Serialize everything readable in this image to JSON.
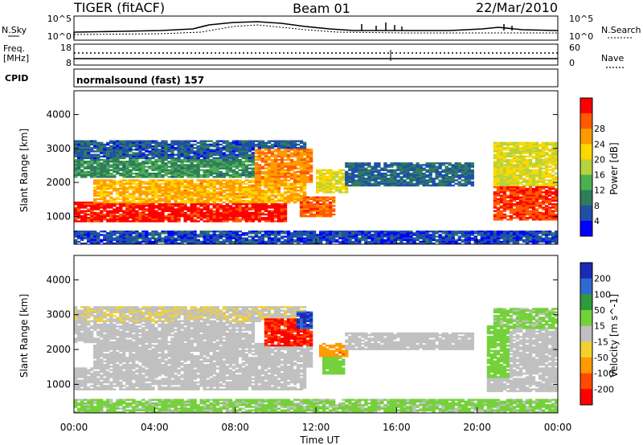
{
  "header": {
    "radar": "TIGER (fitACF)",
    "beam": "Beam 01",
    "date": "22/Mar/2010"
  },
  "top_panels": {
    "nsky_label": "N.Sky",
    "nsky_ticks": [
      "10^5",
      "10^0"
    ],
    "nsearch_label": "N.Search",
    "nsearch_ticks": [
      "10^5",
      "10^0"
    ],
    "freq_label": "Freq.",
    "freq_unit": "[MHz]",
    "freq_ticks": [
      "18",
      "8"
    ],
    "nave_label": "Nave",
    "nave_ticks": [
      "60",
      "0"
    ],
    "cpid_label": "CPID",
    "cpid_value": "normalsound (fast) 157"
  },
  "colors": {
    "power_scale": [
      "#0000ff",
      "#1f4fa8",
      "#2e7d5a",
      "#4caf50",
      "#b6d33a",
      "#ffd700",
      "#ff9a00",
      "#ff5a00",
      "#ff0000"
    ],
    "velocity_scale": [
      "#1a2ab5",
      "#2e6ad1",
      "#2e9a3c",
      "#74d13a",
      "#c0c0c0",
      "#f2d230",
      "#ff9a00",
      "#ff4a00",
      "#ff0000"
    ],
    "background": "#ffffff"
  },
  "chart_data": [
    {
      "type": "heatmap",
      "title": "",
      "ylabel": "Slant Range [km]",
      "xlabel": "Time UT",
      "x_ticks": [
        "00:00",
        "04:00",
        "08:00",
        "12:00",
        "16:00",
        "20:00",
        "00:00"
      ],
      "y_ticks": [
        "1000",
        "2000",
        "3000",
        "4000"
      ],
      "ylim": [
        180,
        4700
      ],
      "x_range_hours": [
        0,
        24
      ],
      "colorbar_label": "Power [dB]",
      "colorbar_ticks": [
        "4",
        "8",
        "12",
        "16",
        "20",
        "24",
        "28"
      ],
      "colorbar_range": [
        0,
        32
      ],
      "regions": [
        {
          "t0": 0.0,
          "t1": 10.5,
          "r0": 850,
          "r1": 1450,
          "level": 30
        },
        {
          "t0": 1.0,
          "t1": 11.5,
          "r0": 1400,
          "r1": 2100,
          "level": 22
        },
        {
          "t0": 0.0,
          "t1": 9.0,
          "r0": 2150,
          "r1": 2750,
          "level": 10
        },
        {
          "t0": 0.0,
          "t1": 11.5,
          "r0": 2700,
          "r1": 3250,
          "level": 6
        },
        {
          "t0": 9.0,
          "t1": 11.8,
          "r0": 2000,
          "r1": 3000,
          "level": 24
        },
        {
          "t0": 11.2,
          "t1": 13.0,
          "r0": 1000,
          "r1": 1600,
          "level": 26
        },
        {
          "t0": 12.0,
          "t1": 13.6,
          "r0": 1700,
          "r1": 2400,
          "level": 18
        },
        {
          "t0": 13.5,
          "t1": 19.8,
          "r0": 1900,
          "r1": 2600,
          "level": 7
        },
        {
          "t0": 20.8,
          "t1": 24.0,
          "r0": 900,
          "r1": 1900,
          "level": 28
        },
        {
          "t0": 20.8,
          "t1": 24.0,
          "r0": 1900,
          "r1": 3200,
          "level": 18
        },
        {
          "t0": 0.0,
          "t1": 24.0,
          "r0": 200,
          "r1": 600,
          "level": 5
        }
      ]
    },
    {
      "type": "heatmap",
      "title": "",
      "ylabel": "Slant Range [km]",
      "xlabel": "Time UT",
      "x_ticks": [
        "00:00",
        "04:00",
        "08:00",
        "12:00",
        "16:00",
        "20:00",
        "00:00"
      ],
      "y_ticks": [
        "1000",
        "2000",
        "3000",
        "4000"
      ],
      "ylim": [
        180,
        4700
      ],
      "x_range_hours": [
        0,
        24
      ],
      "colorbar_label": "Velocity [m s^-1]",
      "colorbar_ticks": [
        "200",
        "100",
        "50",
        "15",
        "-15",
        "-50",
        "-100",
        "-200"
      ],
      "colorbar_range": [
        -250,
        250
      ],
      "regions": [
        {
          "t0": 0.0,
          "t1": 11.5,
          "r0": 850,
          "r1": 1500,
          "level": 0
        },
        {
          "t0": 1.0,
          "t1": 11.8,
          "r0": 1500,
          "r1": 2200,
          "level": 0
        },
        {
          "t0": 0.0,
          "t1": 9.0,
          "r0": 2200,
          "r1": 2800,
          "level": 5
        },
        {
          "t0": 0.0,
          "t1": 11.5,
          "r0": 2800,
          "r1": 3250,
          "level": -20
        },
        {
          "t0": 9.5,
          "t1": 11.8,
          "r0": 2100,
          "r1": 2900,
          "level": -200
        },
        {
          "t0": 11.0,
          "t1": 11.8,
          "r0": 2600,
          "r1": 3100,
          "level": 200
        },
        {
          "t0": 12.2,
          "t1": 13.6,
          "r0": 1800,
          "r1": 2200,
          "level": -120
        },
        {
          "t0": 12.4,
          "t1": 13.4,
          "r0": 1300,
          "r1": 1800,
          "level": 60
        },
        {
          "t0": 13.5,
          "t1": 19.8,
          "r0": 2000,
          "r1": 2500,
          "level": 0
        },
        {
          "t0": 20.5,
          "t1": 24.0,
          "r0": 800,
          "r1": 2600,
          "level": 0
        },
        {
          "t0": 20.5,
          "t1": 21.6,
          "r0": 1200,
          "r1": 2700,
          "level": 60
        },
        {
          "t0": 20.8,
          "t1": 24.0,
          "r0": 2600,
          "r1": 3200,
          "level": 40
        },
        {
          "t0": 0.0,
          "t1": 24.0,
          "r0": 200,
          "r1": 600,
          "level": 40
        }
      ]
    }
  ]
}
